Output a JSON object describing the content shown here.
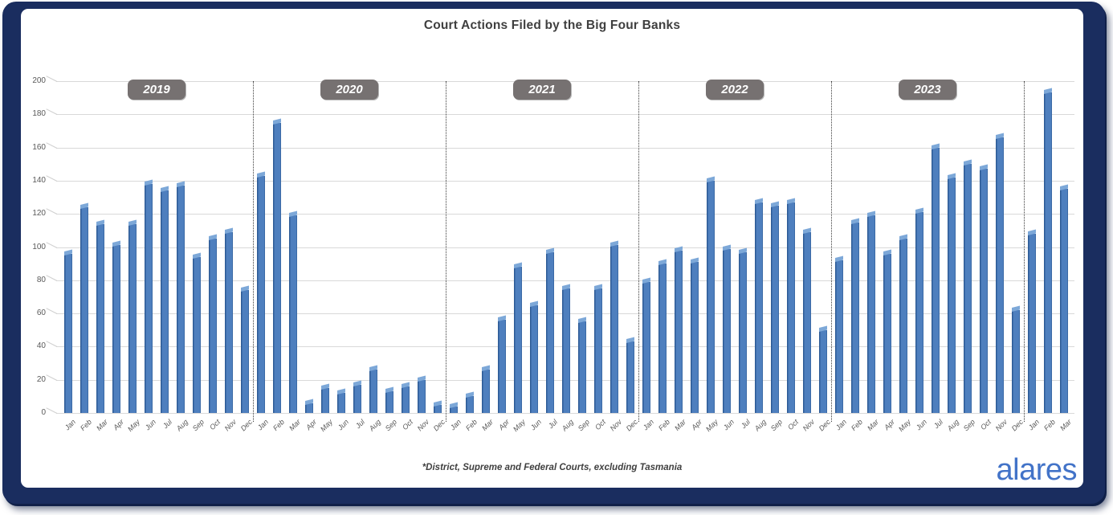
{
  "footnote": "*District, Supreme and Federal Courts, excluding Tasmania",
  "logo": "alares",
  "colors": {
    "frame": "#1a2d5f",
    "bar": "#4E7FBE",
    "bar_edge_dark": "#2D5B96",
    "bar_top_light": "#7DA8D8",
    "badge_bg": "#767171",
    "gridline": "#D9D9D9",
    "axis_text": "#595959",
    "title_text": "#3F3F3F",
    "logo_blue": "#4273C8"
  },
  "chart_data": {
    "type": "bar",
    "title": "Court Actions Filed by the Big Four Banks",
    "xlabel": "",
    "ylabel": "",
    "ylim": [
      0,
      200
    ],
    "ytick_interval": 20,
    "ytick_labels": [
      "0",
      "20",
      "40",
      "60",
      "80",
      "100",
      "120",
      "140",
      "160",
      "180",
      "200"
    ],
    "grid": true,
    "legend": "none",
    "months": [
      "Jan",
      "Feb",
      "Mar",
      "Apr",
      "May",
      "Jun",
      "Jul",
      "Aug",
      "Sep",
      "Oct",
      "Nov",
      "Dec"
    ],
    "year_groups": [
      {
        "year_label": "2019",
        "values": [
          96,
          124,
          114,
          101,
          114,
          138,
          134,
          137,
          94,
          105,
          109,
          74
        ]
      },
      {
        "year_label": "2020",
        "values": [
          143,
          175,
          119,
          6,
          15,
          12,
          17,
          26,
          13,
          16,
          20,
          5
        ]
      },
      {
        "year_label": "2021",
        "values": [
          4,
          10,
          26,
          56,
          88,
          65,
          97,
          75,
          55,
          75,
          101,
          43
        ]
      },
      {
        "year_label": "2022",
        "values": [
          79,
          90,
          98,
          91,
          140,
          99,
          97,
          127,
          125,
          127,
          109,
          50
        ]
      },
      {
        "year_label": "2023",
        "values": [
          92,
          115,
          119,
          96,
          105,
          121,
          160,
          142,
          150,
          147,
          166,
          62
        ]
      },
      {
        "year_label": "",
        "values": [
          108,
          193,
          135
        ]
      }
    ]
  }
}
